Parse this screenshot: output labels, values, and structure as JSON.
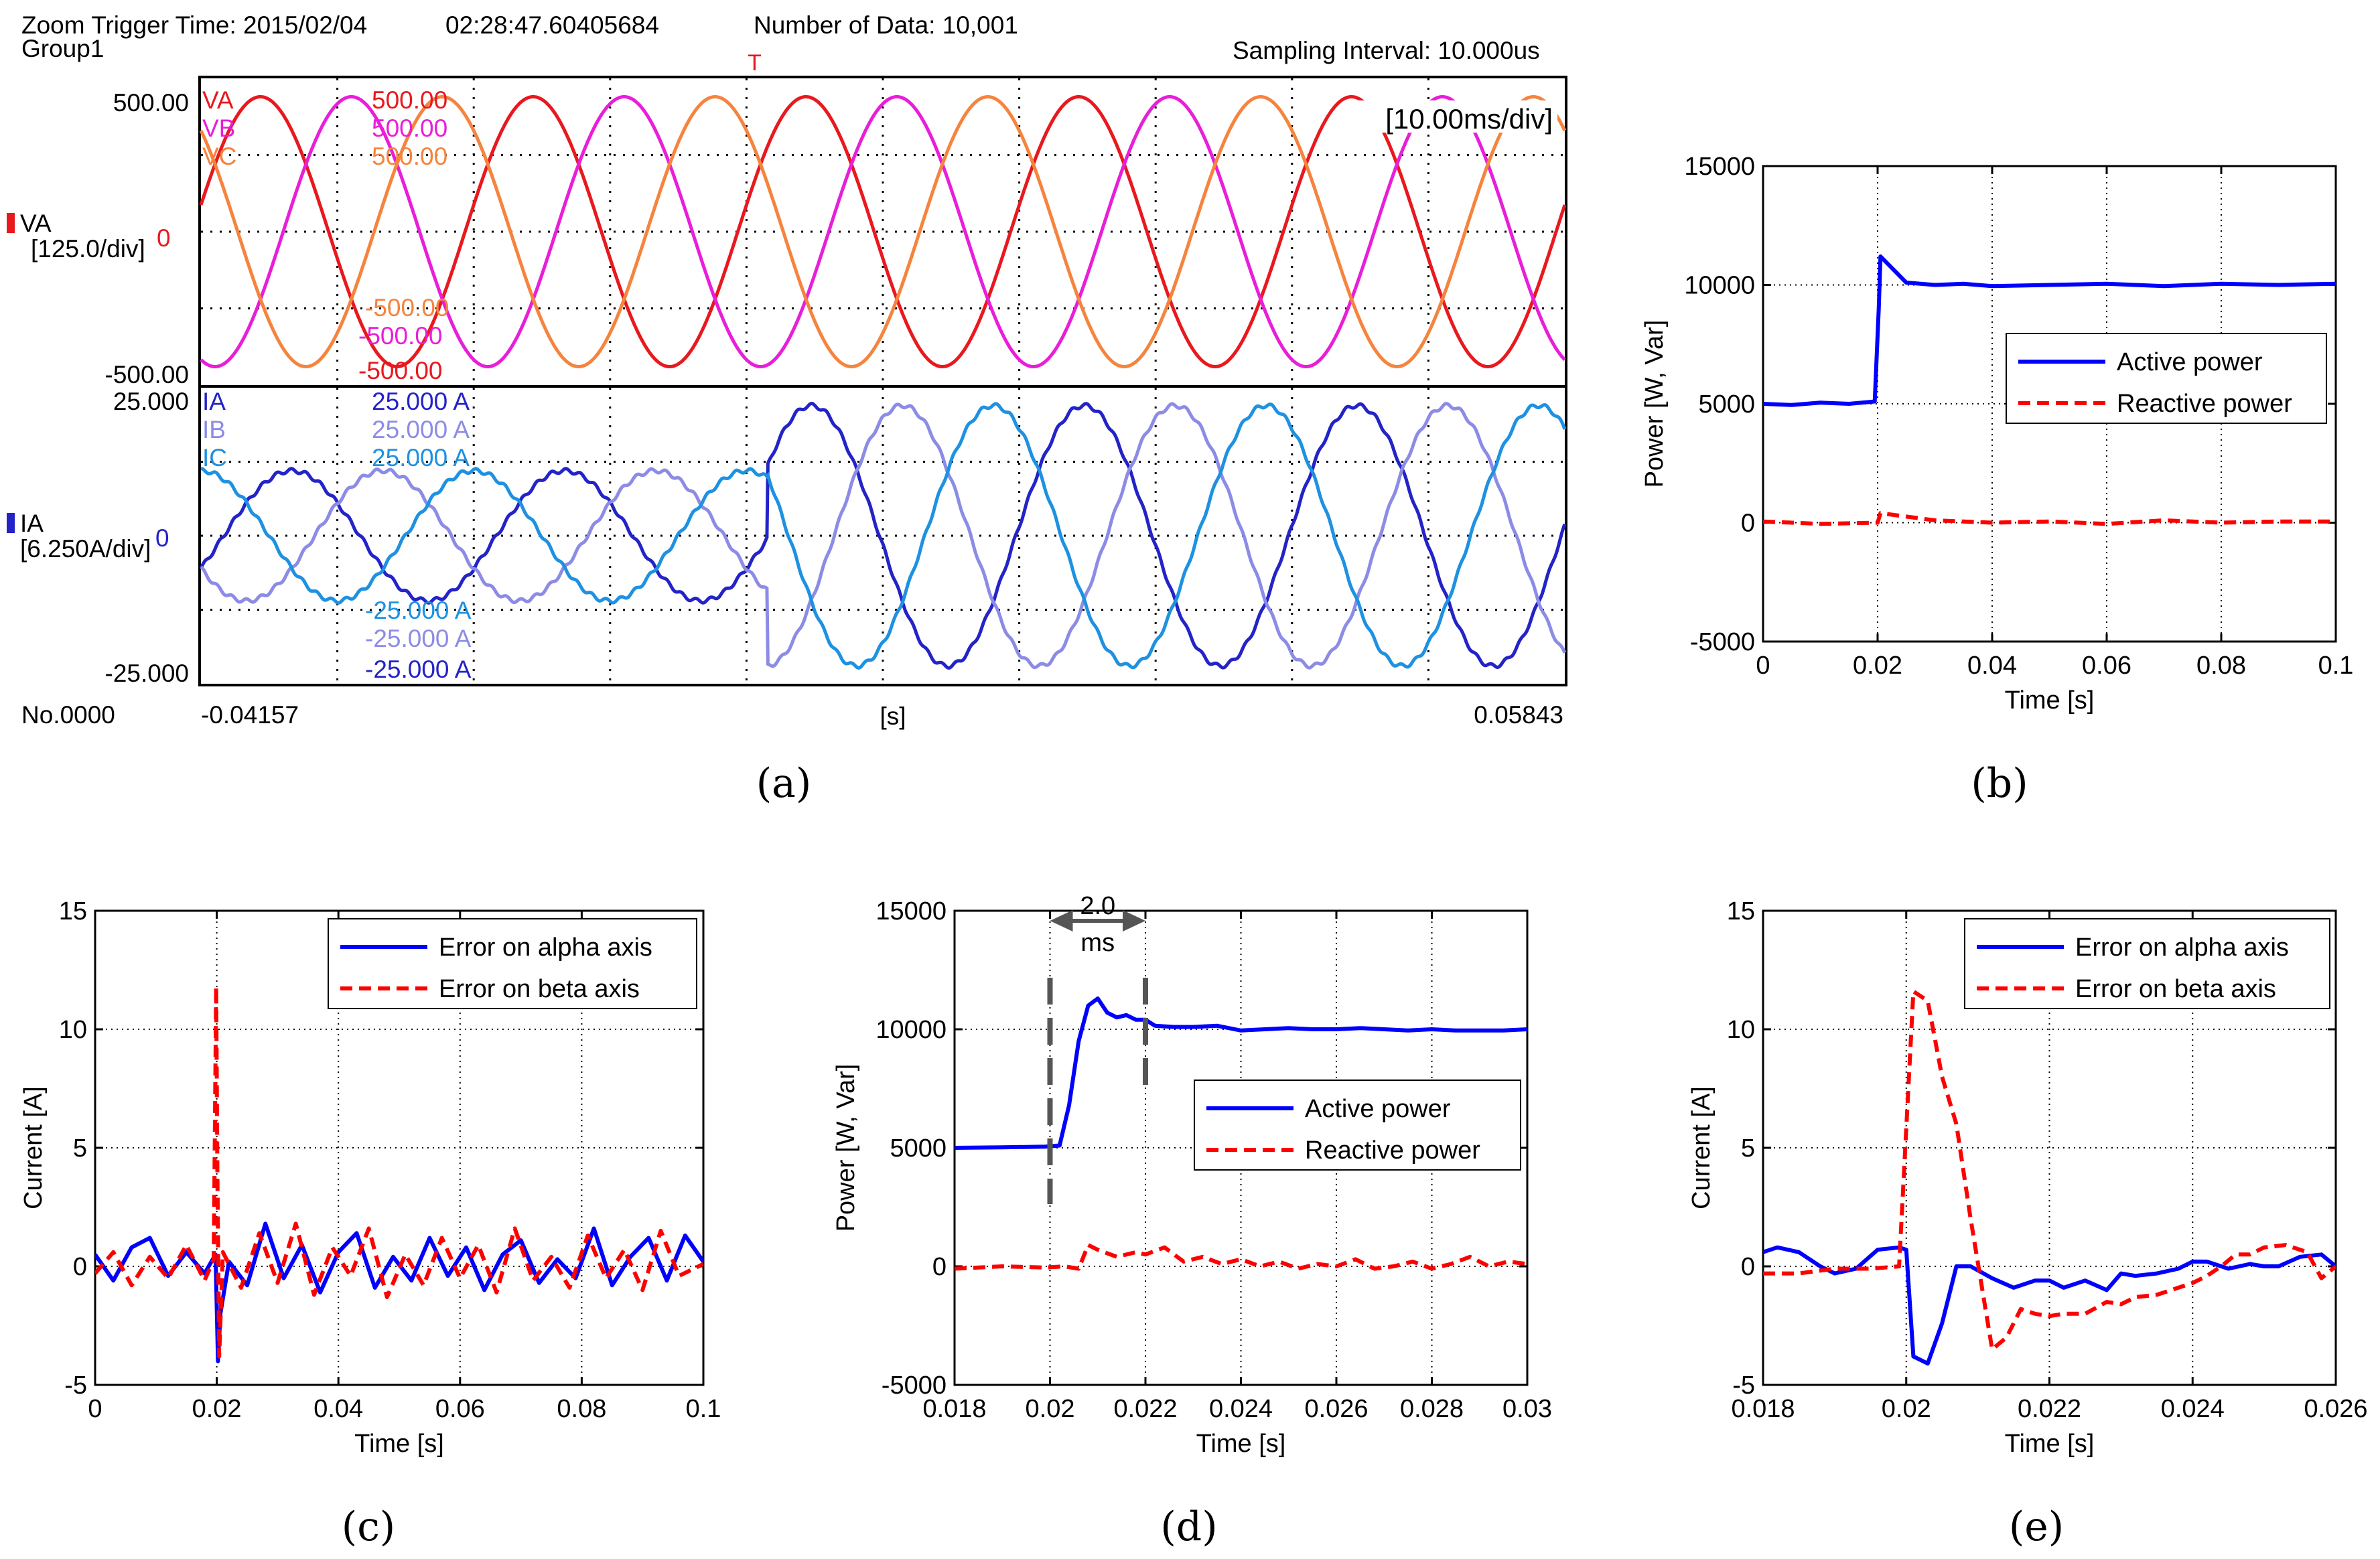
{
  "chart_data": [
    {
      "panel": "(a)",
      "type": "line",
      "header": {
        "trigger": "Zoom Trigger Time: 2015/02/04",
        "time": "02:28:47.60405684",
        "group": "Group1",
        "ndata": "Number of Data: 10,001",
        "sampling": "Sampling Interval:  10.000us",
        "trig_marker": "T"
      },
      "timebase": "[10.00ms/div]",
      "x_unit": "[s]",
      "x_start": "-0.04157",
      "x_end": "0.05843",
      "x_range_s": [
        -0.04157,
        0.05843
      ],
      "no_label": "No.0000",
      "voltage": {
        "ch": "VA",
        "div": "[125.0/div]",
        "top": "500.00",
        "bottom": "-500.00",
        "zero": "0",
        "range": [
          -500,
          500
        ],
        "series": [
          {
            "name": "VA",
            "color": "#e8191e",
            "amplitude": 440,
            "phase_deg": 0,
            "top": "500.00",
            "bottom": "-500.00"
          },
          {
            "name": "VB",
            "color": "#e81ed9",
            "amplitude": 440,
            "phase_deg": -120,
            "top": "500.00",
            "bottom": "-500.00"
          },
          {
            "name": "VC",
            "color": "#f5843e",
            "amplitude": 440,
            "phase_deg": 120,
            "top": "500.00",
            "bottom": "-500.00"
          }
        ]
      },
      "current": {
        "ch": "IA",
        "div": "[6.250A/div]",
        "top": "25.000",
        "bottom": "-25.000",
        "zero": "0",
        "range": [
          -25,
          25
        ],
        "step_time_s": 0.0,
        "amp_before": 11,
        "amp_after": 22,
        "series": [
          {
            "name": "IA",
            "color": "#2323c8",
            "phase_deg": -30,
            "top": "25.000 A",
            "bottom": "-25.000 A"
          },
          {
            "name": "IB",
            "color": "#8c8ce6",
            "phase_deg": -150,
            "top": "25.000 A",
            "bottom": "-25.000 A"
          },
          {
            "name": "IC",
            "color": "#1e91e1",
            "phase_deg": 90,
            "top": "25.000 A",
            "bottom": "-25.000 A"
          }
        ]
      },
      "frequency_hz": 50
    },
    {
      "panel": "(b)",
      "type": "line",
      "xlabel": "Time [s]",
      "ylabel": "Power [W, Var]",
      "xlim": [
        0,
        0.1
      ],
      "ylim": [
        -5000,
        15000
      ],
      "x_ticks": [
        "0",
        "0.02",
        "0.04",
        "0.06",
        "0.08",
        "0.1"
      ],
      "y_ticks": [
        "-5000",
        "0",
        "5000",
        "10000",
        "15000"
      ],
      "grid": true,
      "legend": "upper-right",
      "series": [
        {
          "name": "Active power",
          "color": "#0000ff",
          "style": "solid",
          "x": [
            0,
            0.005,
            0.01,
            0.015,
            0.0195,
            0.0202,
            0.0205,
            0.025,
            0.03,
            0.035,
            0.04,
            0.05,
            0.06,
            0.07,
            0.08,
            0.09,
            0.1
          ],
          "y": [
            5000,
            4950,
            5050,
            5000,
            5100,
            9000,
            11200,
            10100,
            10000,
            10050,
            9950,
            10000,
            10050,
            9950,
            10050,
            10000,
            10050
          ]
        },
        {
          "name": "Reactive power",
          "color": "#ff0000",
          "style": "dashed",
          "x": [
            0,
            0.01,
            0.02,
            0.0205,
            0.03,
            0.04,
            0.05,
            0.06,
            0.07,
            0.08,
            0.09,
            0.1
          ],
          "y": [
            50,
            -50,
            0,
            400,
            100,
            0,
            50,
            -50,
            100,
            0,
            50,
            50
          ]
        }
      ]
    },
    {
      "panel": "(c)",
      "type": "line",
      "xlabel": "Time [s]",
      "ylabel": "Current [A]",
      "xlim": [
        0,
        0.1
      ],
      "ylim": [
        -5,
        15
      ],
      "x_ticks": [
        "0",
        "0.02",
        "0.04",
        "0.06",
        "0.08",
        "0.1"
      ],
      "y_ticks": [
        "-5",
        "0",
        "5",
        "10",
        "15"
      ],
      "grid": true,
      "legend": "upper-right",
      "series": [
        {
          "name": "Error on alpha axis",
          "color": "#0000ff",
          "style": "solid",
          "x": [
            0,
            0.003,
            0.006,
            0.009,
            0.012,
            0.015,
            0.018,
            0.0198,
            0.0202,
            0.0206,
            0.022,
            0.025,
            0.028,
            0.031,
            0.034,
            0.037,
            0.04,
            0.043,
            0.046,
            0.049,
            0.052,
            0.055,
            0.058,
            0.061,
            0.064,
            0.067,
            0.07,
            0.073,
            0.076,
            0.079,
            0.082,
            0.085,
            0.088,
            0.091,
            0.094,
            0.097,
            0.1
          ],
          "y": [
            0.5,
            -0.6,
            0.8,
            1.2,
            -0.4,
            0.6,
            -0.3,
            0.5,
            -4.0,
            -2.0,
            0.2,
            -0.8,
            1.8,
            -0.5,
            0.9,
            -1.1,
            0.6,
            1.4,
            -0.9,
            0.4,
            -0.6,
            1.2,
            -0.4,
            0.8,
            -1.0,
            0.5,
            1.1,
            -0.7,
            0.3,
            -0.5,
            1.6,
            -0.8,
            0.4,
            1.2,
            -0.6,
            1.3,
            0.2
          ]
        },
        {
          "name": "Error on beta axis",
          "color": "#ff0000",
          "style": "dashed",
          "x": [
            0,
            0.003,
            0.006,
            0.009,
            0.012,
            0.015,
            0.018,
            0.0195,
            0.0199,
            0.0201,
            0.0204,
            0.021,
            0.024,
            0.027,
            0.03,
            0.033,
            0.036,
            0.039,
            0.042,
            0.045,
            0.048,
            0.051,
            0.054,
            0.057,
            0.06,
            0.063,
            0.066,
            0.069,
            0.072,
            0.075,
            0.078,
            0.081,
            0.084,
            0.087,
            0.09,
            0.093,
            0.096,
            0.1
          ],
          "y": [
            -0.3,
            0.6,
            -0.8,
            0.4,
            -0.5,
            0.9,
            -0.6,
            0.3,
            11.8,
            4.0,
            -3.8,
            0.6,
            -0.9,
            1.4,
            -0.7,
            1.8,
            -1.2,
            0.8,
            -0.4,
            1.6,
            -1.3,
            0.5,
            -0.8,
            1.2,
            -0.5,
            0.9,
            -1.1,
            1.6,
            -0.6,
            0.4,
            -0.9,
            1.3,
            -0.5,
            0.7,
            -1.0,
            1.5,
            -0.4,
            0.1
          ]
        }
      ]
    },
    {
      "panel": "(d)",
      "type": "line",
      "xlabel": "Time [s]",
      "ylabel": "Power [W, Var]",
      "xlim": [
        0.018,
        0.03
      ],
      "ylim": [
        -5000,
        15000
      ],
      "x_ticks": [
        "0.018",
        "0.02",
        "0.022",
        "0.024",
        "0.026",
        "0.028",
        "0.03"
      ],
      "y_ticks": [
        "-5000",
        "0",
        "5000",
        "10000",
        "15000"
      ],
      "grid": true,
      "legend": "center-right",
      "annotation": {
        "text_top": "2.0",
        "text_bottom": "ms",
        "x_from": 0.02,
        "x_to": 0.022
      },
      "series": [
        {
          "name": "Active power",
          "color": "#0000ff",
          "style": "solid",
          "x": [
            0.018,
            0.019,
            0.0199,
            0.0202,
            0.0204,
            0.0206,
            0.0208,
            0.021,
            0.0212,
            0.0214,
            0.0216,
            0.0218,
            0.022,
            0.0222,
            0.0226,
            0.023,
            0.0235,
            0.024,
            0.0245,
            0.025,
            0.0255,
            0.026,
            0.0265,
            0.027,
            0.0275,
            0.028,
            0.0285,
            0.029,
            0.0295,
            0.03
          ],
          "y": [
            5000,
            5020,
            5050,
            5100,
            6800,
            9500,
            11000,
            11300,
            10700,
            10500,
            10600,
            10400,
            10400,
            10150,
            10100,
            10100,
            10150,
            9950,
            10000,
            10050,
            10000,
            10000,
            10050,
            10000,
            9950,
            10000,
            9950,
            9950,
            9950,
            10000
          ]
        },
        {
          "name": "Reactive power",
          "color": "#ff0000",
          "style": "dashed",
          "x": [
            0.018,
            0.019,
            0.0199,
            0.0203,
            0.0206,
            0.0208,
            0.021,
            0.0214,
            0.0218,
            0.022,
            0.0224,
            0.0228,
            0.0232,
            0.0236,
            0.024,
            0.0244,
            0.0248,
            0.0252,
            0.0256,
            0.026,
            0.0264,
            0.0268,
            0.0272,
            0.0276,
            0.028,
            0.0284,
            0.0288,
            0.0292,
            0.0296,
            0.03
          ],
          "y": [
            -100,
            0,
            -50,
            0,
            -100,
            900,
            700,
            400,
            600,
            500,
            800,
            200,
            400,
            100,
            300,
            0,
            200,
            -100,
            100,
            0,
            300,
            -100,
            0,
            200,
            -100,
            100,
            400,
            0,
            200,
            100
          ]
        }
      ]
    },
    {
      "panel": "(e)",
      "type": "line",
      "xlabel": "Time [s]",
      "ylabel": "Current [A]",
      "xlim": [
        0.018,
        0.026
      ],
      "ylim": [
        -5,
        15
      ],
      "x_ticks": [
        "0.018",
        "0.02",
        "0.022",
        "0.024",
        "0.026"
      ],
      "y_ticks": [
        "-5",
        "0",
        "5",
        "10",
        "15"
      ],
      "grid": true,
      "legend": "upper-right",
      "series": [
        {
          "name": "Error on alpha axis",
          "color": "#0000ff",
          "style": "solid",
          "x": [
            0.018,
            0.0182,
            0.0185,
            0.0188,
            0.019,
            0.0193,
            0.0196,
            0.0199,
            0.02,
            0.0201,
            0.0203,
            0.0205,
            0.0207,
            0.0209,
            0.0212,
            0.0215,
            0.0218,
            0.022,
            0.0222,
            0.0225,
            0.0228,
            0.023,
            0.0232,
            0.0235,
            0.0238,
            0.024,
            0.0242,
            0.0245,
            0.0248,
            0.025,
            0.0252,
            0.0255,
            0.0258,
            0.026
          ],
          "y": [
            0.6,
            0.8,
            0.6,
            0.0,
            -0.3,
            -0.1,
            0.7,
            0.8,
            0.7,
            -3.8,
            -4.1,
            -2.4,
            0.0,
            0.0,
            -0.5,
            -0.9,
            -0.6,
            -0.6,
            -0.9,
            -0.6,
            -1.0,
            -0.3,
            -0.4,
            -0.3,
            -0.1,
            0.2,
            0.2,
            -0.1,
            0.1,
            0.0,
            0.0,
            0.4,
            0.5,
            0.0
          ]
        },
        {
          "name": "Error on beta axis",
          "color": "#ff0000",
          "style": "dashed",
          "x": [
            0.018,
            0.0185,
            0.019,
            0.0195,
            0.0199,
            0.0201,
            0.0203,
            0.0205,
            0.0207,
            0.0209,
            0.0212,
            0.0214,
            0.0216,
            0.0218,
            0.022,
            0.0222,
            0.0225,
            0.0228,
            0.023,
            0.0232,
            0.0235,
            0.0238,
            0.024,
            0.0242,
            0.0244,
            0.0246,
            0.0248,
            0.025,
            0.0253,
            0.0256,
            0.0258,
            0.026
          ],
          "y": [
            -0.3,
            -0.3,
            -0.1,
            -0.1,
            0.0,
            11.6,
            11.2,
            8.0,
            6.0,
            2.0,
            -3.5,
            -3.0,
            -1.8,
            -2.0,
            -2.1,
            -2.0,
            -2.0,
            -1.5,
            -1.6,
            -1.3,
            -1.2,
            -0.9,
            -0.7,
            -0.4,
            0.0,
            0.5,
            0.5,
            0.8,
            0.9,
            0.6,
            -0.5,
            0.0
          ]
        }
      ]
    }
  ],
  "captions": {
    "a": "(a)",
    "b": "(b)",
    "c": "(c)",
    "d": "(d)",
    "e": "(e)"
  }
}
